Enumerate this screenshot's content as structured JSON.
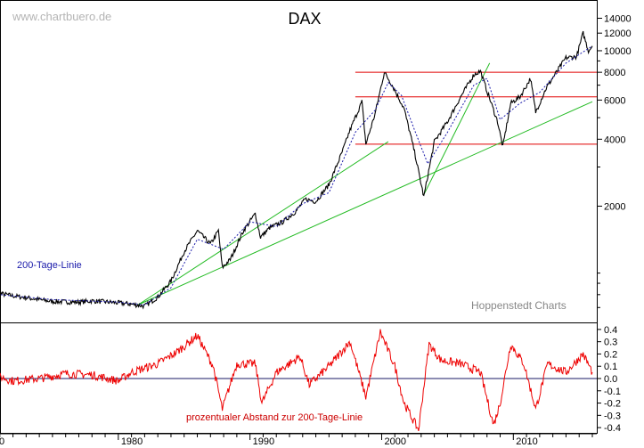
{
  "watermark": "www.chartbuero.de",
  "source": "Hoppenstedt Charts",
  "colors": {
    "price": "#000000",
    "moving_average": "#1a1aaa",
    "support_resistance": "#e00000",
    "trendline": "#22bb22",
    "oscillator": "#ee0000",
    "zero_line": "#1a1a66"
  },
  "chart_data": [
    {
      "type": "line",
      "title": "DAX",
      "y_scale": "log",
      "x_range": [
        "1970",
        "2016"
      ],
      "ylim": [
        600,
        16000
      ],
      "x_ticks": [
        "1980",
        "1990",
        "2000",
        "2010"
      ],
      "x_tick_partial": "0",
      "y_ticks": [
        14000,
        12000,
        10000,
        8000,
        6000,
        4000,
        2000
      ],
      "grid": false,
      "series": [
        {
          "style": "price",
          "x": [
            1970,
            1972,
            1974,
            1975,
            1977,
            1978,
            1980,
            1981,
            1982,
            1983,
            1984,
            1985,
            1986,
            1987,
            1987.6,
            1987.9,
            1988.5,
            1989.5,
            1990.4,
            1990.8,
            1991.5,
            1992.5,
            1993.5,
            1994.2,
            1995,
            1996,
            1997,
            1997.6,
            1998.5,
            1998.8,
            1999.5,
            2000.2,
            2000.8,
            2001.7,
            2002.5,
            2003.2,
            2004,
            2005,
            2006,
            2007,
            2007.5,
            2008,
            2008.8,
            2009.2,
            2009.8,
            2010.5,
            2011.3,
            2011.7,
            2012.5,
            2013.5,
            2014,
            2014.8,
            2015.3,
            2015.7,
            2016
          ],
          "y": [
            830,
            790,
            760,
            745,
            740,
            750,
            735,
            725,
            710,
            780,
            920,
            1250,
            1550,
            1350,
            1550,
            1060,
            1150,
            1550,
            1850,
            1450,
            1600,
            1700,
            1900,
            2150,
            2100,
            2500,
            3500,
            4400,
            5900,
            3800,
            5200,
            8000,
            7000,
            5500,
            3500,
            2200,
            3900,
            4800,
            6200,
            7800,
            8100,
            6600,
            4800,
            3700,
            5800,
            6200,
            7500,
            5300,
            6800,
            8400,
            9300,
            9400,
            12000,
            10000,
            10500
          ]
        },
        {
          "name": "200-Tage-Linie",
          "style": "moving_average",
          "x": [
            1970,
            1975,
            1980,
            1982,
            1984,
            1986,
            1988,
            1990,
            1992,
            1994,
            1996,
            1998,
            1999.5,
            2000.5,
            2001.5,
            2002.5,
            2003.5,
            2005,
            2007,
            2008,
            2009,
            2010.5,
            2012,
            2014,
            2016
          ],
          "y": [
            810,
            760,
            740,
            720,
            860,
            1420,
            1280,
            1700,
            1620,
            2050,
            2300,
            4300,
            5400,
            7200,
            6300,
            4400,
            3100,
            4300,
            7000,
            7500,
            4900,
            5800,
            6500,
            8800,
            10500
          ]
        }
      ],
      "support_resistance": [
        8000,
        6200,
        3800
      ],
      "trendlines": [
        {
          "from": [
            1981.5,
            720
          ],
          "to": [
            2000.5,
            3900
          ]
        },
        {
          "from": [
            1981.5,
            720
          ],
          "to": [
            2016,
            5900
          ]
        },
        {
          "from": [
            2003.2,
            2250
          ],
          "to": [
            2008.2,
            8800
          ]
        }
      ],
      "annotations": [
        "200-Tage-Linie"
      ]
    },
    {
      "type": "line",
      "title": "prozentualer Abstand zur 200-Tage-Linie",
      "ylim": [
        -0.45,
        0.45
      ],
      "y_ticks": [
        0.4,
        0.3,
        0.2,
        0.1,
        0.0,
        -0.1,
        -0.2,
        -0.3,
        -0.4
      ],
      "x_ticks": [
        "1980",
        "1990",
        "2000",
        "2010"
      ],
      "series": [
        {
          "style": "oscillator",
          "x": [
            1970,
            1972,
            1974,
            1976,
            1978,
            1980,
            1981,
            1983,
            1984.5,
            1986,
            1987.2,
            1987.9,
            1989,
            1990.4,
            1990.9,
            1992,
            1993.8,
            1994.5,
            1996,
            1997.6,
            1998.8,
            1999.9,
            2001,
            2001.7,
            2002.8,
            2003.6,
            2004.5,
            2006,
            2007.5,
            2008.5,
            2009,
            2009.8,
            2010.8,
            2011.7,
            2012.6,
            2014,
            2015.3,
            2016
          ],
          "y": [
            0.05,
            -0.02,
            0.0,
            0.04,
            0.03,
            -0.02,
            0.05,
            0.12,
            0.22,
            0.35,
            0.1,
            -0.25,
            0.12,
            0.12,
            -0.2,
            0.05,
            0.18,
            -0.05,
            0.1,
            0.3,
            -0.15,
            0.38,
            0.1,
            -0.2,
            -0.42,
            0.28,
            0.15,
            0.12,
            0.05,
            -0.38,
            -0.2,
            0.28,
            0.12,
            -0.25,
            0.12,
            0.05,
            0.2,
            0.05
          ]
        }
      ]
    }
  ]
}
